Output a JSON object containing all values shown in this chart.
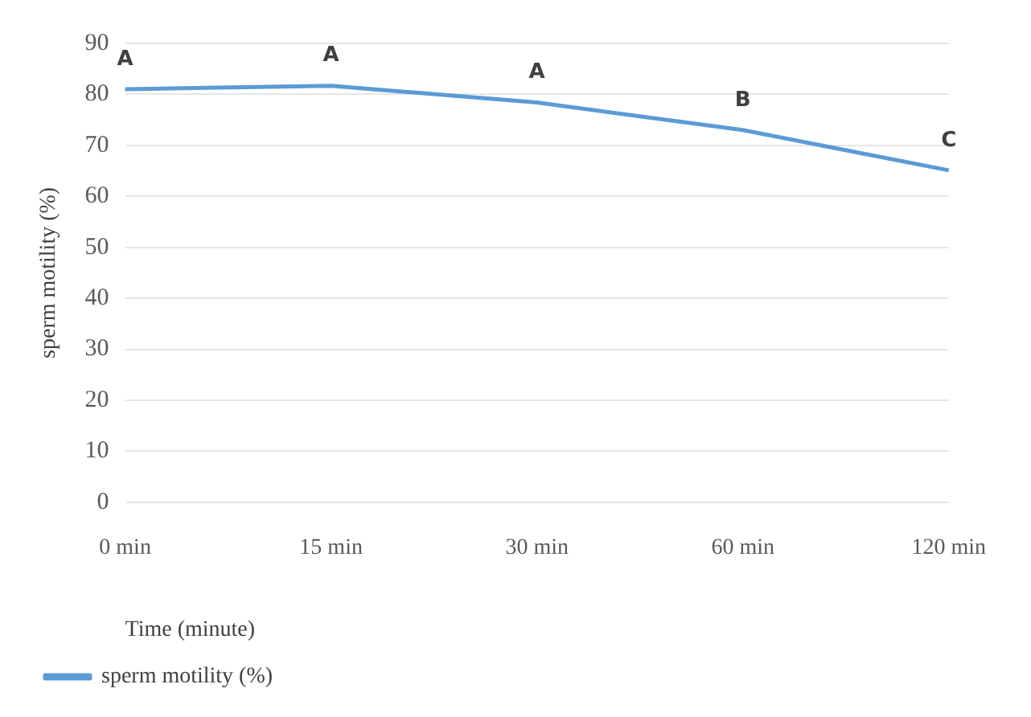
{
  "chart_data": {
    "type": "line",
    "xlabel": "Time (minute)",
    "ylabel": "sperm motility (%)",
    "categories": [
      "0 min",
      "15 min",
      "30 min",
      "60 min",
      "120 min"
    ],
    "series": [
      {
        "name": "sperm motility (%)",
        "color": "#5b9bd5",
        "values": [
          81,
          81.7,
          78.4,
          73,
          65.1
        ]
      }
    ],
    "ylim": [
      0,
      90
    ],
    "yticks": [
      0,
      10,
      20,
      30,
      40,
      50,
      60,
      70,
      80,
      90
    ],
    "grid": "y",
    "legend": "bottom left",
    "marker": "none",
    "line_style": "solid",
    "annotations": [
      {
        "text": "A",
        "x": "0 min",
        "y": 81
      },
      {
        "text": "A",
        "x": "15 min",
        "y": 81.7
      },
      {
        "text": "A",
        "x": "30 min",
        "y": 78.4
      },
      {
        "text": "B",
        "x": "60 min",
        "y": 73
      },
      {
        "text": "C",
        "x": "120 min",
        "y": 65.1
      }
    ]
  }
}
